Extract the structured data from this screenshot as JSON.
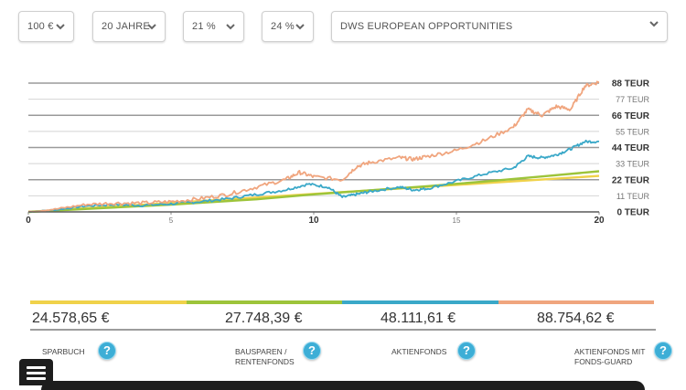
{
  "filters": {
    "amount": "100 €",
    "duration": "20 JAHRE",
    "rate1": "21 %",
    "rate2": "24 %",
    "fund": "DWS EUROPEAN OPPORTUNITIES"
  },
  "chart_data": {
    "type": "line",
    "x_ticks": [
      "0",
      "5",
      "10",
      "15",
      "20"
    ],
    "x_ticks_major": [
      true,
      false,
      true,
      false,
      true
    ],
    "xlim": [
      0,
      20
    ],
    "y_ticks": [
      "0 TEUR",
      "11 TEUR",
      "22 TEUR",
      "33 TEUR",
      "44 TEUR",
      "55 TEUR",
      "66 TEUR",
      "77 TEUR",
      "88 TEUR"
    ],
    "y_ticks_major": [
      true,
      false,
      true,
      false,
      true,
      false,
      true,
      false,
      true
    ],
    "ylim": [
      0,
      88
    ],
    "grid": true,
    "series": [
      {
        "color": "#f0d24a",
        "x": [
          0,
          20
        ],
        "y": [
          0,
          24.58
        ]
      },
      {
        "color": "#9dc43a",
        "x": [
          0,
          2,
          5,
          8,
          10,
          12,
          14,
          16,
          18,
          20
        ],
        "y": [
          0,
          2,
          5,
          8.6,
          12,
          14.8,
          17.6,
          20.8,
          24.2,
          27.75
        ]
      },
      {
        "color": "#3aa8c8",
        "x": [
          0,
          1,
          2,
          3,
          4,
          5,
          6,
          7,
          8,
          9,
          9.8,
          10.5,
          11,
          11.5,
          12,
          13,
          13.5,
          14,
          15,
          16,
          17,
          17.5,
          18,
          18.5,
          19,
          19.5,
          20
        ],
        "y": [
          0,
          1.5,
          4,
          5,
          4.5,
          5.5,
          7,
          9,
          12,
          15,
          19,
          17,
          10,
          12,
          14,
          17,
          15,
          16,
          21,
          26,
          30,
          38,
          37,
          39,
          43,
          48,
          48.1
        ]
      },
      {
        "color": "#f0a57e",
        "x": [
          0,
          1,
          2,
          3,
          4,
          5,
          6,
          7,
          8,
          9,
          9.5,
          10,
          11,
          11.5,
          12,
          13,
          13.5,
          14,
          15,
          16,
          17,
          17.5,
          18,
          18.5,
          19,
          19.5,
          20
        ],
        "y": [
          0,
          2,
          5,
          6,
          6,
          7,
          9,
          12,
          17,
          22,
          27,
          24,
          22,
          31,
          34,
          37,
          36,
          38,
          42,
          49,
          58,
          70,
          66,
          72,
          70,
          86,
          88.75
        ]
      }
    ]
  },
  "totals": [
    {
      "value": "24.578,65 €",
      "label1": "SPARBUCH",
      "label2": "",
      "color": "#f0d24a"
    },
    {
      "value": "27.748,39 €",
      "label1": "BAUSPAREN /",
      "label2": "RENTENFONDS",
      "color": "#9dc43a"
    },
    {
      "value": "48.111,61 €",
      "label1": "AKTIENFONDS",
      "label2": "",
      "color": "#3aa8c8"
    },
    {
      "value": "88.754,62 €",
      "label1": "AKTIENFONDS MIT",
      "label2": "FONDS-GUARD",
      "color": "#f0a57e"
    }
  ],
  "help_glyph": "?",
  "icons": {
    "menu": "hamburger-menu-icon",
    "help": "help-circle-icon",
    "dropdown": "chevron-down-icon"
  }
}
